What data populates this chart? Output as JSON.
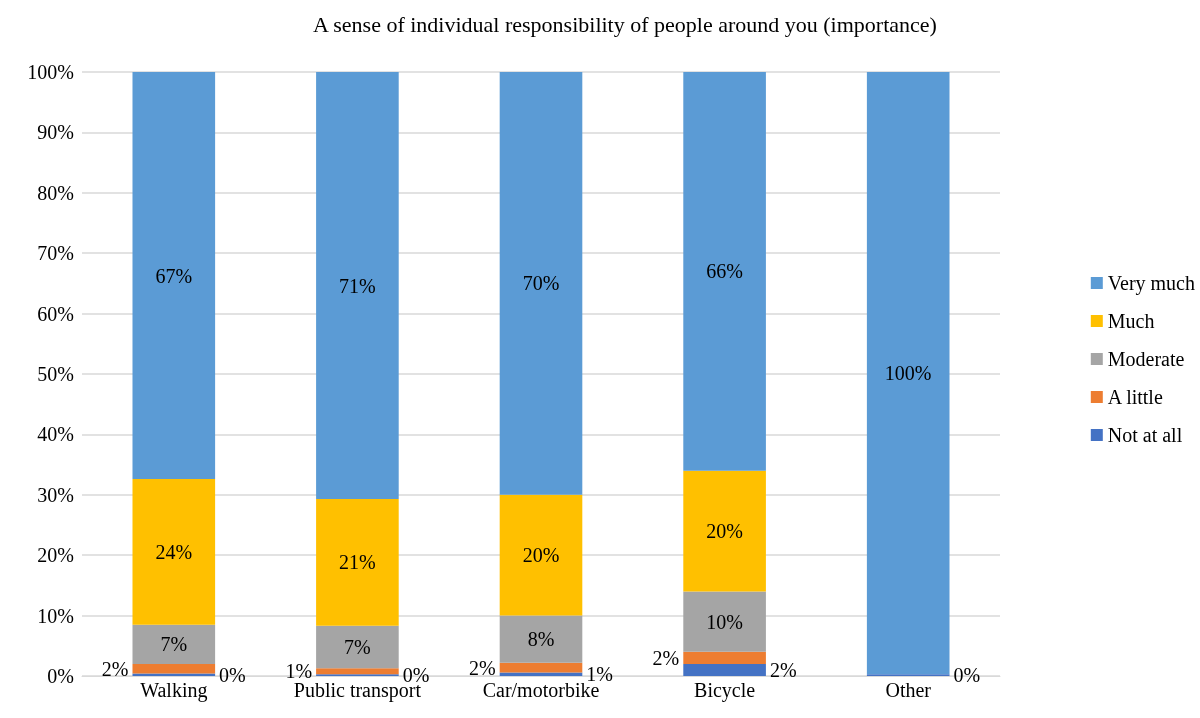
{
  "chart_data": {
    "type": "bar",
    "title": "A sense of individual responsibility of people around you (importance)",
    "categories": [
      "Walking",
      "Public transport",
      "Car/motorbike",
      "Bicycle",
      "Other"
    ],
    "stacked": true,
    "series": [
      {
        "name": "Not at all",
        "color": "#4472c4",
        "values": [
          0.4,
          0.3,
          0.6,
          2,
          0.3
        ],
        "value_labels": [
          "0%",
          "0%",
          "1%",
          "2%",
          "0%"
        ]
      },
      {
        "name": "A little",
        "color": "#ed7d31",
        "values": [
          1.6,
          1,
          1.6,
          2,
          0
        ],
        "value_labels": [
          "2%",
          "1%",
          "2%",
          "2%",
          null
        ]
      },
      {
        "name": "Moderate",
        "color": "#a5a5a5",
        "values": [
          6.5,
          7,
          7.8,
          10,
          0
        ],
        "value_labels": [
          "7%",
          "7%",
          "8%",
          "10%",
          null
        ]
      },
      {
        "name": "Much",
        "color": "#ffc000",
        "values": [
          24.1,
          21,
          20,
          20,
          0
        ],
        "value_labels": [
          "24%",
          "21%",
          "20%",
          "20%",
          null
        ]
      },
      {
        "name": "Very much",
        "color": "#5b9bd5",
        "values": [
          67.4,
          70.7,
          70,
          66,
          99.7
        ],
        "value_labels": [
          "67%",
          "71%",
          "70%",
          "66%",
          "100%"
        ]
      }
    ],
    "ylim": [
      0,
      100
    ],
    "yticks": [
      {
        "value": 0,
        "label": "0%"
      },
      {
        "value": 10,
        "label": "10%"
      },
      {
        "value": 20,
        "label": "20%"
      },
      {
        "value": 30,
        "label": "30%"
      },
      {
        "value": 40,
        "label": "40%"
      },
      {
        "value": 50,
        "label": "50%"
      },
      {
        "value": 60,
        "label": "60%"
      },
      {
        "value": 70,
        "label": "70%"
      },
      {
        "value": 80,
        "label": "80%"
      },
      {
        "value": 90,
        "label": "90%"
      },
      {
        "value": 100,
        "label": "100%"
      }
    ],
    "grid": "y",
    "legend": "right"
  }
}
